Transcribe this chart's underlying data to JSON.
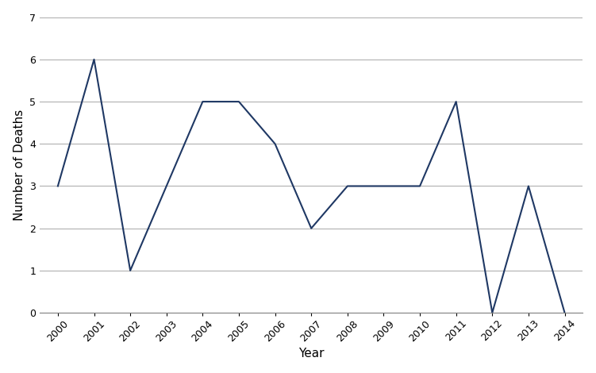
{
  "years": [
    2000,
    2001,
    2002,
    2003,
    2004,
    2005,
    2006,
    2007,
    2008,
    2009,
    2010,
    2011,
    2012,
    2013,
    2014
  ],
  "deaths": [
    3,
    6,
    1,
    3,
    5,
    5,
    4,
    2,
    3,
    3,
    3,
    5,
    0,
    3,
    0
  ],
  "line_color": "#1F3864",
  "line_width": 1.5,
  "xlabel": "Year",
  "ylabel": "Number of Deaths",
  "ylim": [
    0,
    7
  ],
  "yticks": [
    0,
    1,
    2,
    3,
    4,
    5,
    6,
    7
  ],
  "background_color": "#ffffff",
  "grid_color": "#b0b0b0",
  "xlabel_fontsize": 11,
  "ylabel_fontsize": 11,
  "tick_fontsize": 9
}
